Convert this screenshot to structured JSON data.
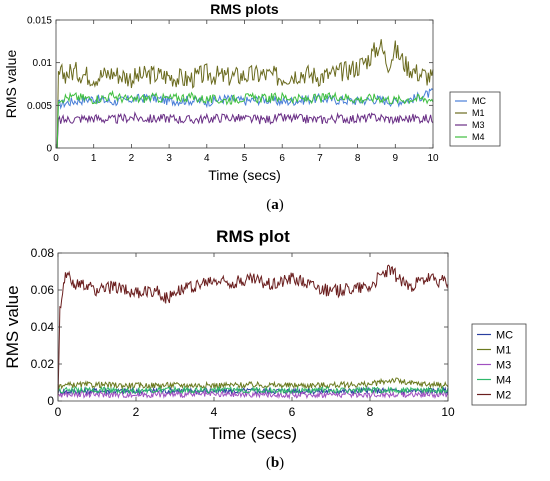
{
  "chart_data": [
    {
      "type": "line",
      "title": "RMS plots",
      "xlabel": "Time (secs)",
      "ylabel": "RMS value",
      "xlim": [
        0,
        10
      ],
      "ylim": [
        0,
        0.015
      ],
      "xticks": [
        "0",
        "1",
        "2",
        "3",
        "4",
        "5",
        "6",
        "7",
        "8",
        "9",
        "10"
      ],
      "yticks": [
        "0",
        "0.005",
        "0.01",
        "0.015"
      ],
      "legend_position": "right",
      "caption_label": "a",
      "series": [
        {
          "name": "MC",
          "color": "#4a7fd8",
          "x": [
            0.05,
            0.5,
            1,
            1.5,
            2,
            2.5,
            3,
            3.5,
            4,
            4.5,
            5,
            5.5,
            6,
            6.5,
            7,
            7.5,
            8,
            8.5,
            9,
            9.5,
            10
          ],
          "values": [
            0.0051,
            0.0055,
            0.0058,
            0.0054,
            0.0057,
            0.0059,
            0.0055,
            0.0056,
            0.0054,
            0.0058,
            0.0055,
            0.0057,
            0.0054,
            0.0056,
            0.0058,
            0.0056,
            0.0055,
            0.0057,
            0.0054,
            0.0058,
            0.0065
          ]
        },
        {
          "name": "M1",
          "color": "#6b6b1f",
          "x": [
            0.05,
            0.5,
            1,
            1.5,
            2,
            2.5,
            3,
            3.5,
            4,
            4.5,
            5,
            5.5,
            6,
            6.5,
            7,
            7.5,
            8,
            8.3,
            8.6,
            8.8,
            9,
            9.3,
            9.6,
            10
          ],
          "values": [
            0.0085,
            0.009,
            0.0083,
            0.0088,
            0.0082,
            0.0086,
            0.0084,
            0.008,
            0.0087,
            0.0083,
            0.0085,
            0.0086,
            0.0083,
            0.0088,
            0.0084,
            0.0088,
            0.0095,
            0.0105,
            0.0122,
            0.0098,
            0.0115,
            0.0096,
            0.0088,
            0.0082
          ]
        },
        {
          "name": "M3",
          "color": "#6a2f86",
          "x": [
            0.05,
            0.5,
            1,
            1.5,
            2,
            2.5,
            3,
            3.5,
            4,
            4.5,
            5,
            5.5,
            6,
            6.5,
            7,
            7.5,
            8,
            8.5,
            9,
            9.5,
            10
          ],
          "values": [
            0.0032,
            0.0034,
            0.0035,
            0.0033,
            0.0036,
            0.0034,
            0.0035,
            0.0033,
            0.0034,
            0.0036,
            0.0034,
            0.0033,
            0.0035,
            0.0034,
            0.0033,
            0.0035,
            0.0034,
            0.0036,
            0.0033,
            0.0035,
            0.0034
          ]
        },
        {
          "name": "M4",
          "color": "#3fbf3f",
          "x": [
            0.05,
            0.5,
            1,
            1.5,
            2,
            2.5,
            3,
            3.5,
            4,
            4.5,
            5,
            5.5,
            6,
            6.5,
            7,
            7.5,
            8,
            8.5,
            9,
            9.5,
            10
          ],
          "values": [
            0.0058,
            0.006,
            0.0057,
            0.0061,
            0.0056,
            0.0059,
            0.0058,
            0.006,
            0.0057,
            0.0056,
            0.0059,
            0.0058,
            0.006,
            0.0057,
            0.0058,
            0.0061,
            0.0057,
            0.0059,
            0.0056,
            0.0058,
            0.0057
          ]
        }
      ]
    },
    {
      "type": "line",
      "title": "RMS plot",
      "xlabel": "Time (secs)",
      "ylabel": "RMS value",
      "xlim": [
        0,
        10
      ],
      "ylim": [
        0,
        0.08
      ],
      "xticks": [
        "0",
        "2",
        "4",
        "6",
        "8",
        "10"
      ],
      "yticks": [
        "0",
        "0.02",
        "0.04",
        "0.06",
        "0.08"
      ],
      "legend_position": "right",
      "caption_label": "b",
      "series": [
        {
          "name": "MC",
          "color": "#2a3f9f",
          "x": [
            0,
            1,
            2,
            3,
            4,
            5,
            6,
            7,
            8,
            9,
            10
          ],
          "values": [
            0.005,
            0.0055,
            0.0052,
            0.0056,
            0.0053,
            0.0055,
            0.0054,
            0.0052,
            0.0056,
            0.0054,
            0.0055
          ]
        },
        {
          "name": "M1",
          "color": "#6b7a1f",
          "x": [
            0,
            1,
            2,
            3,
            4,
            5,
            6,
            7,
            8,
            8.6,
            9,
            10
          ],
          "values": [
            0.0085,
            0.0088,
            0.0083,
            0.0086,
            0.0084,
            0.0087,
            0.0084,
            0.0086,
            0.009,
            0.0115,
            0.0095,
            0.0085
          ]
        },
        {
          "name": "M3",
          "color": "#a050c0",
          "x": [
            0,
            1,
            2,
            3,
            4,
            5,
            6,
            7,
            8,
            9,
            10
          ],
          "values": [
            0.0034,
            0.0035,
            0.0033,
            0.0036,
            0.0034,
            0.0035,
            0.0033,
            0.0035,
            0.0034,
            0.0036,
            0.0034
          ]
        },
        {
          "name": "M4",
          "color": "#2fb86b",
          "x": [
            0,
            1,
            2,
            3,
            4,
            5,
            6,
            7,
            8,
            9,
            10
          ],
          "values": [
            0.0058,
            0.006,
            0.0057,
            0.0059,
            0.0058,
            0.006,
            0.0057,
            0.0059,
            0.0058,
            0.0059,
            0.0057
          ]
        },
        {
          "name": "M2",
          "color": "#6b1f1f",
          "x": [
            0,
            0.05,
            0.2,
            0.5,
            1,
            1.5,
            2,
            2.5,
            2.8,
            3,
            3.5,
            4,
            4.5,
            5,
            5.5,
            6,
            6.5,
            7,
            7.5,
            8,
            8.3,
            8.5,
            8.8,
            9,
            9.5,
            10
          ],
          "values": [
            0.001,
            0.05,
            0.068,
            0.063,
            0.06,
            0.062,
            0.058,
            0.06,
            0.055,
            0.06,
            0.062,
            0.065,
            0.064,
            0.066,
            0.063,
            0.067,
            0.063,
            0.059,
            0.061,
            0.062,
            0.068,
            0.071,
            0.065,
            0.062,
            0.066,
            0.064
          ]
        }
      ]
    }
  ]
}
